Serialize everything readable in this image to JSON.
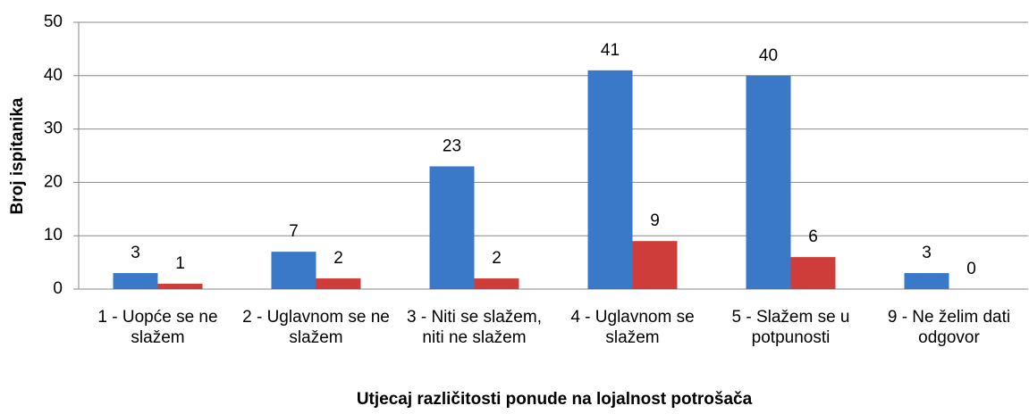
{
  "chart_data": {
    "type": "bar",
    "x_label": "Utjecaj različitosti ponude na lojalnost potrošača",
    "y_label": "Broj ispitanika",
    "categories": [
      "1 - Uopće se ne slažem",
      "2 - Uglavnom se ne slažem",
      "3 - Niti se slažem, niti ne slažem",
      "4 - Uglavnom se slažem",
      "5 - Slažem se u potpunosti",
      "9 - Ne želim dati odgovor"
    ],
    "series": [
      {
        "color": "#3a78c8",
        "values": [
          3,
          7,
          23,
          41,
          40,
          3
        ]
      },
      {
        "color": "#cf3d3a",
        "values": [
          1,
          2,
          2,
          9,
          6,
          0
        ]
      }
    ],
    "ylim": [
      0,
      50
    ],
    "yticks": [
      0,
      10,
      20,
      30,
      40,
      50
    ],
    "grid": true
  }
}
